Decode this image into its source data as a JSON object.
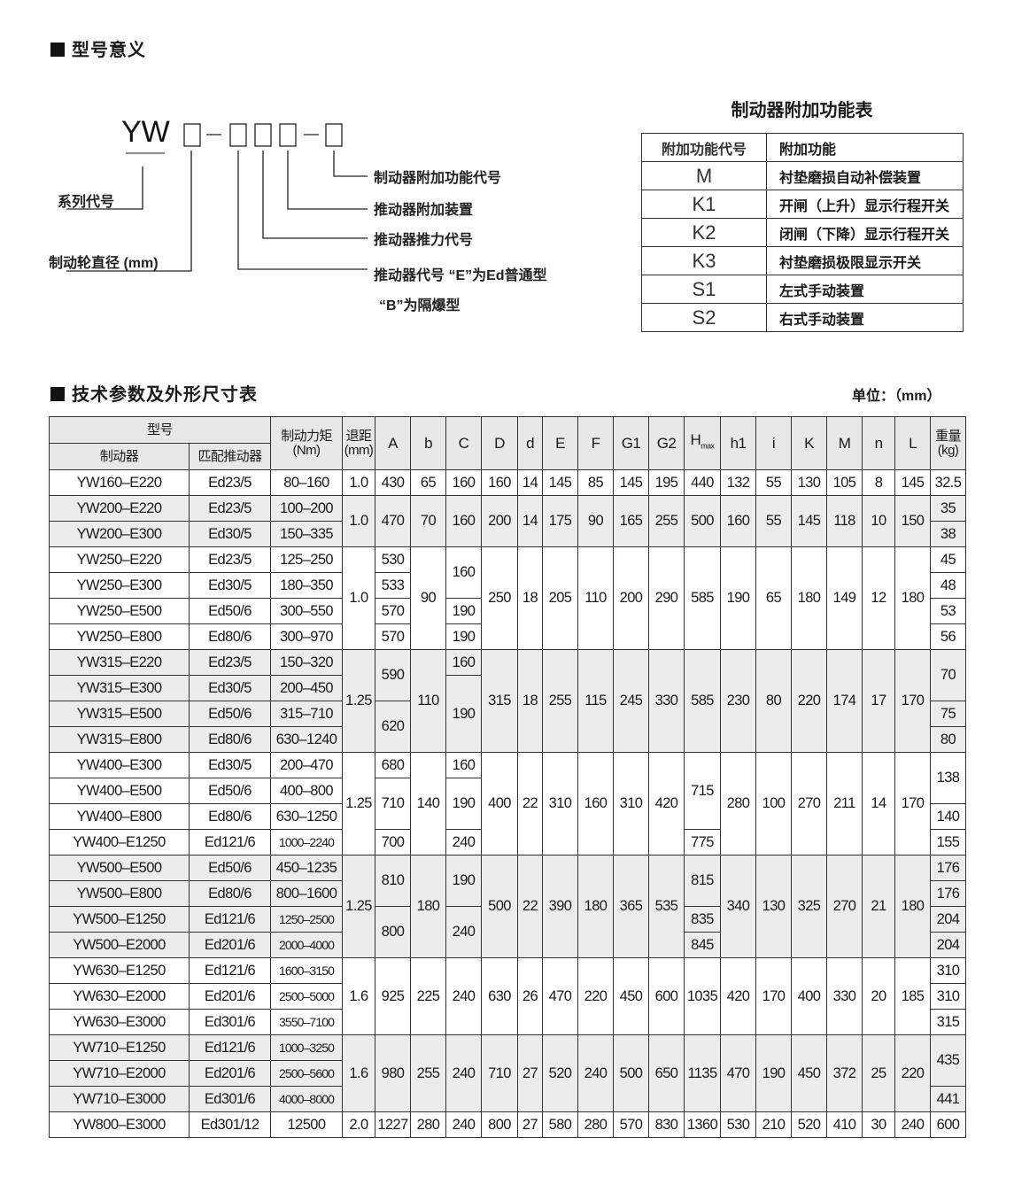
{
  "model_meaning": {
    "title": "型号意义",
    "prefix": "YW",
    "series_label": "系列代号",
    "wheel_label": "制动轮直径 (mm)",
    "callouts": [
      "制动器附加功能代号",
      "推动器附加装置",
      "推动器推力代号",
      "推动器代号 “E”为Ed普通型",
      "“B”为隔爆型"
    ]
  },
  "feature_table": {
    "title": "制动器附加功能表",
    "headers": [
      "附加功能代号",
      "附加功能"
    ],
    "rows": [
      [
        "M",
        "衬垫磨损自动补偿装置"
      ],
      [
        "K1",
        "开闸（上升）显示行程开关"
      ],
      [
        "K2",
        "闭闸（下降）显示行程开关"
      ],
      [
        "K3",
        "衬垫磨损极限显示开关"
      ],
      [
        "S1",
        "左式手动装置"
      ],
      [
        "S2",
        "右式手动装置"
      ]
    ]
  },
  "spec_table": {
    "title": "技术参数及外形尺寸表",
    "unit": "单位：（mm）",
    "header_group": "型号",
    "header_brake": "制动器",
    "header_actuator": "匹配推动器",
    "header_torque": "制动力矩\n(Nm)",
    "header_retreat": "退距\n(mm)",
    "dim_headers": [
      "A",
      "b",
      "C",
      "D",
      "d",
      "E",
      "F",
      "G1",
      "G2",
      "Hmax",
      "h1",
      "i",
      "K",
      "M",
      "n",
      "L"
    ],
    "header_weight": "重量\n(kg)",
    "groups": [
      {
        "rows": [
          [
            "YW160–E220",
            "Ed23/5",
            "80–160"
          ]
        ],
        "cols": [
          "1.0",
          "430",
          "65",
          "160",
          "160",
          "14",
          "145",
          "85",
          "145",
          "195",
          "440",
          "132",
          "55",
          "130",
          "105",
          "8",
          "145",
          "32.5"
        ]
      },
      {
        "rows": [
          [
            "YW200–E220",
            "Ed23/5",
            "100–200"
          ],
          [
            "YW200–E300",
            "Ed30/5",
            "150–335"
          ]
        ],
        "cols": [
          "1.0",
          "470",
          "70",
          "160",
          "200",
          "14",
          "175",
          "90",
          "165",
          "255",
          "500",
          "160",
          "55",
          "145",
          "118",
          "10",
          "150",
          [
            [
              "35",
              1
            ],
            [
              "38",
              1
            ]
          ]
        ]
      },
      {
        "rows": [
          [
            "YW250–E220",
            "Ed23/5",
            "125–250"
          ],
          [
            "YW250–E300",
            "Ed30/5",
            "180–350"
          ],
          [
            "YW250–E500",
            "Ed50/6",
            "300–550"
          ],
          [
            "YW250–E800",
            "Ed80/6",
            "300–970"
          ]
        ],
        "cols": [
          "1.0",
          [
            [
              "530",
              1
            ],
            [
              "533",
              1
            ],
            [
              "570",
              1
            ],
            [
              "570",
              1
            ]
          ],
          "90",
          [
            [
              "160",
              2
            ],
            [
              "190",
              1
            ],
            [
              "190",
              1
            ]
          ],
          "250",
          "18",
          "205",
          "110",
          "200",
          "290",
          "585",
          "190",
          "65",
          "180",
          "149",
          "12",
          "180",
          [
            [
              "45",
              1
            ],
            [
              "48",
              1
            ],
            [
              "53",
              1
            ],
            [
              "56",
              1
            ]
          ]
        ]
      },
      {
        "rows": [
          [
            "YW315–E220",
            "Ed23/5",
            "150–320"
          ],
          [
            "YW315–E300",
            "Ed30/5",
            "200–450"
          ],
          [
            "YW315–E500",
            "Ed50/6",
            "315–710"
          ],
          [
            "YW315–E800",
            "Ed80/6",
            "630–1240"
          ]
        ],
        "cols": [
          "1.25",
          [
            [
              "590",
              2
            ],
            [
              "620",
              2
            ]
          ],
          "110",
          [
            [
              "160",
              1
            ],
            [
              "190",
              3
            ]
          ],
          "315",
          "18",
          "255",
          "115",
          "245",
          "330",
          "585",
          "230",
          "80",
          "220",
          "174",
          "17",
          "170",
          [
            [
              "70",
              2
            ],
            [
              "75",
              1
            ],
            [
              "80",
              1
            ]
          ]
        ]
      },
      {
        "rows": [
          [
            "YW400–E300",
            "Ed30/5",
            "200–470"
          ],
          [
            "YW400–E500",
            "Ed50/6",
            "400–800"
          ],
          [
            "YW400–E800",
            "Ed80/6",
            "630–1250"
          ],
          [
            "YW400–E1250",
            "Ed121/6",
            "1000–2240"
          ]
        ],
        "cols": [
          "1.25",
          [
            [
              "680",
              1
            ],
            [
              "710",
              2
            ],
            [
              "700",
              1
            ]
          ],
          "140",
          [
            [
              "160",
              1
            ],
            [
              "190",
              2
            ],
            [
              "240",
              1
            ]
          ],
          "400",
          "22",
          "310",
          "160",
          "310",
          "420",
          [
            [
              "715",
              3
            ],
            [
              "775",
              1
            ]
          ],
          "280",
          "100",
          "270",
          "211",
          "14",
          "170",
          [
            [
              "138",
              2
            ],
            [
              "140",
              1
            ],
            [
              "155",
              1
            ]
          ]
        ]
      },
      {
        "rows": [
          [
            "YW500–E500",
            "Ed50/6",
            "450–1235"
          ],
          [
            "YW500–E800",
            "Ed80/6",
            "800–1600"
          ],
          [
            "YW500–E1250",
            "Ed121/6",
            "1250–2500"
          ],
          [
            "YW500–E2000",
            "Ed201/6",
            "2000–4000"
          ]
        ],
        "cols": [
          "1.25",
          [
            [
              "810",
              2
            ],
            [
              "800",
              2
            ]
          ],
          "180",
          [
            [
              "190",
              2
            ],
            [
              "240",
              2
            ]
          ],
          "500",
          "22",
          "390",
          "180",
          "365",
          "535",
          [
            [
              "815",
              2
            ],
            [
              "835",
              1
            ],
            [
              "845",
              1
            ]
          ],
          "340",
          "130",
          "325",
          "270",
          "21",
          "180",
          [
            [
              "176",
              1
            ],
            [
              "176",
              1
            ],
            [
              "204",
              1
            ],
            [
              "204",
              1
            ]
          ]
        ]
      },
      {
        "rows": [
          [
            "YW630–E1250",
            "Ed121/6",
            "1600–3150"
          ],
          [
            "YW630–E2000",
            "Ed201/6",
            "2500–5000"
          ],
          [
            "YW630–E3000",
            "Ed301/6",
            "3550–7100"
          ]
        ],
        "cols": [
          "1.6",
          "925",
          "225",
          "240",
          "630",
          "26",
          "470",
          "220",
          "450",
          "600",
          "1035",
          "420",
          "170",
          "400",
          "330",
          "20",
          "185",
          [
            [
              "310",
              1
            ],
            [
              "310",
              1
            ],
            [
              "315",
              1
            ]
          ]
        ]
      },
      {
        "rows": [
          [
            "YW710–E1250",
            "Ed121/6",
            "1000–3250"
          ],
          [
            "YW710–E2000",
            "Ed201/6",
            "2500–5600"
          ],
          [
            "YW710–E3000",
            "Ed301/6",
            "4000–8000"
          ]
        ],
        "cols": [
          "1.6",
          "980",
          "255",
          "240",
          "710",
          "27",
          "520",
          "240",
          "500",
          "650",
          "1135",
          "470",
          "190",
          "450",
          "372",
          "25",
          "220",
          [
            [
              "435",
              2
            ],
            [
              "441",
              1
            ]
          ]
        ]
      },
      {
        "rows": [
          [
            "YW800–E3000",
            "Ed301/12",
            "12500"
          ]
        ],
        "cols": [
          "2.0",
          "1227",
          "280",
          "240",
          "800",
          "27",
          "580",
          "280",
          "570",
          "830",
          "1360",
          "530",
          "210",
          "520",
          "410",
          "30",
          "240",
          "600"
        ]
      }
    ]
  }
}
